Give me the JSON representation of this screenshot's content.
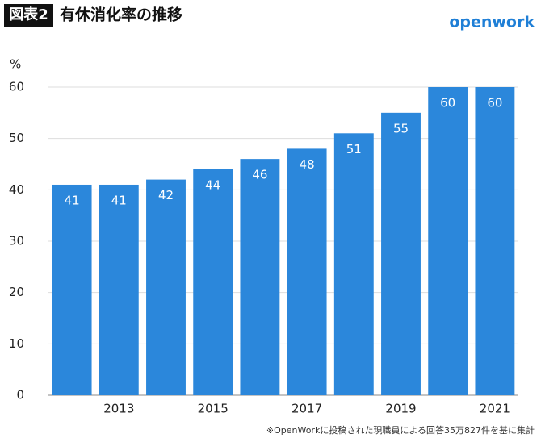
{
  "chart_data": {
    "type": "bar",
    "figure_label": "図表2",
    "title": "有休消化率の推移",
    "brand": "openwork",
    "y_label": "%",
    "note": "※OpenWorkに投稿された現職員による回答35万827件を基に集計",
    "categories": [
      null,
      "2013",
      null,
      "2015",
      null,
      "2017",
      null,
      "2019",
      null,
      "2021"
    ],
    "values": [
      41,
      41,
      42,
      44,
      46,
      48,
      51,
      55,
      60,
      60
    ],
    "color": "#2b87db",
    "ylim": [
      0,
      60
    ],
    "yticks": [
      0,
      10,
      20,
      30,
      40,
      50,
      60
    ],
    "grid": true
  }
}
